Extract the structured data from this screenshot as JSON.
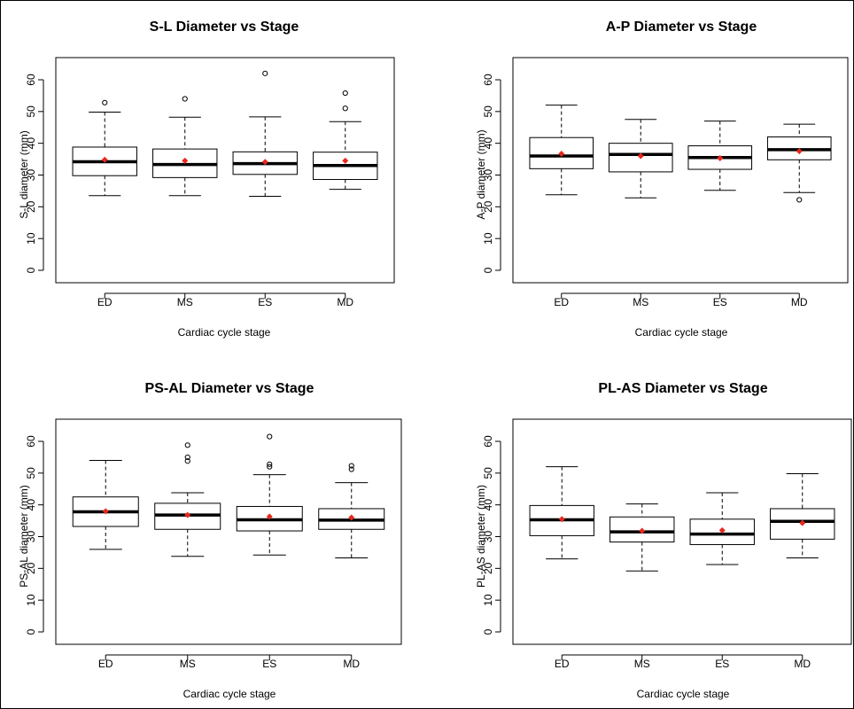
{
  "figure_colors": {
    "box": "#000000",
    "median": "#000000",
    "mean_marker": "#e8281e",
    "outlier": "#000000"
  },
  "chart_data": [
    {
      "type": "boxplot",
      "title": "S-L Diameter vs Stage",
      "xlabel": "Cardiac cycle stage",
      "ylabel": "S-L diameter (mm)",
      "ylim": [
        0,
        60
      ],
      "yticks": [
        "0",
        "10",
        "20",
        "30",
        "40",
        "50",
        "60"
      ],
      "categories": [
        "ED",
        "MS",
        "ES",
        "MD"
      ],
      "boxes": [
        {
          "category": "ED",
          "whisker_low": 23.5,
          "q1": 29.8,
          "median": 34.2,
          "q3": 38.8,
          "whisker_high": 49.8,
          "mean": 34.8,
          "outliers": [
            52.8
          ]
        },
        {
          "category": "MS",
          "whisker_low": 23.5,
          "q1": 29.2,
          "median": 33.3,
          "q3": 38.2,
          "whisker_high": 48.2,
          "mean": 34.5,
          "outliers": [
            54.0
          ]
        },
        {
          "category": "ES",
          "whisker_low": 23.3,
          "q1": 30.2,
          "median": 33.6,
          "q3": 37.3,
          "whisker_high": 48.3,
          "mean": 34.1,
          "outliers": [
            62.0
          ]
        },
        {
          "category": "MD",
          "whisker_low": 25.5,
          "q1": 28.6,
          "median": 33.0,
          "q3": 37.2,
          "whisker_high": 46.8,
          "mean": 34.5,
          "outliers": [
            51.0,
            55.8
          ]
        }
      ]
    },
    {
      "type": "boxplot",
      "title": "A-P Diameter vs Stage",
      "xlabel": "Cardiac cycle stage",
      "ylabel": "A-P diameter (mm)",
      "ylim": [
        0,
        60
      ],
      "yticks": [
        "0",
        "10",
        "20",
        "30",
        "40",
        "50",
        "60"
      ],
      "categories": [
        "ED",
        "MS",
        "ES",
        "MD"
      ],
      "boxes": [
        {
          "category": "ED",
          "whisker_low": 23.8,
          "q1": 32.0,
          "median": 36.0,
          "q3": 41.8,
          "whisker_high": 52.0,
          "mean": 36.7,
          "outliers": []
        },
        {
          "category": "MS",
          "whisker_low": 22.8,
          "q1": 31.0,
          "median": 36.5,
          "q3": 40.0,
          "whisker_high": 47.5,
          "mean": 36.0,
          "outliers": []
        },
        {
          "category": "ES",
          "whisker_low": 25.2,
          "q1": 31.8,
          "median": 35.5,
          "q3": 39.2,
          "whisker_high": 47.0,
          "mean": 35.3,
          "outliers": []
        },
        {
          "category": "MD",
          "whisker_low": 24.5,
          "q1": 34.8,
          "median": 38.0,
          "q3": 42.0,
          "whisker_high": 46.0,
          "mean": 37.5,
          "outliers": [
            22.2
          ]
        }
      ]
    },
    {
      "type": "boxplot",
      "title": "PS-AL Diameter vs Stage",
      "xlabel": "Cardiac cycle stage",
      "ylabel": "PS-AL diameter (mm)",
      "ylim": [
        0,
        60
      ],
      "yticks": [
        "0",
        "10",
        "20",
        "30",
        "40",
        "50",
        "60"
      ],
      "categories": [
        "ED",
        "MS",
        "ES",
        "MD"
      ],
      "boxes": [
        {
          "category": "ED",
          "whisker_low": 26.0,
          "q1": 33.2,
          "median": 37.8,
          "q3": 42.5,
          "whisker_high": 54.0,
          "mean": 38.0,
          "outliers": []
        },
        {
          "category": "MS",
          "whisker_low": 23.8,
          "q1": 32.3,
          "median": 36.8,
          "q3": 40.5,
          "whisker_high": 43.8,
          "mean": 36.8,
          "outliers": [
            53.8,
            55.0,
            58.8
          ]
        },
        {
          "category": "ES",
          "whisker_low": 24.2,
          "q1": 31.8,
          "median": 35.3,
          "q3": 39.5,
          "whisker_high": 49.5,
          "mean": 36.3,
          "outliers": [
            52.0,
            52.8,
            61.5
          ]
        },
        {
          "category": "MD",
          "whisker_low": 23.3,
          "q1": 32.3,
          "median": 35.2,
          "q3": 38.8,
          "whisker_high": 47.0,
          "mean": 36.0,
          "outliers": [
            51.2,
            52.3
          ]
        }
      ]
    },
    {
      "type": "boxplot",
      "title": "PL-AS Diameter vs Stage",
      "xlabel": "Cardiac cycle stage",
      "ylabel": "PL-AS diameter (mm)",
      "ylim": [
        0,
        60
      ],
      "yticks": [
        "0",
        "10",
        "20",
        "30",
        "40",
        "50",
        "60"
      ],
      "categories": [
        "ED",
        "MS",
        "ES",
        "MD"
      ],
      "boxes": [
        {
          "category": "ED",
          "whisker_low": 23.0,
          "q1": 30.3,
          "median": 35.3,
          "q3": 39.8,
          "whisker_high": 52.0,
          "mean": 35.5,
          "outliers": []
        },
        {
          "category": "MS",
          "whisker_low": 19.2,
          "q1": 28.3,
          "median": 31.5,
          "q3": 36.2,
          "whisker_high": 40.3,
          "mean": 31.8,
          "outliers": []
        },
        {
          "category": "ES",
          "whisker_low": 21.2,
          "q1": 27.5,
          "median": 30.8,
          "q3": 35.5,
          "whisker_high": 43.8,
          "mean": 32.0,
          "outliers": []
        },
        {
          "category": "MD",
          "whisker_low": 23.3,
          "q1": 29.2,
          "median": 34.8,
          "q3": 38.8,
          "whisker_high": 49.8,
          "mean": 34.3,
          "outliers": []
        }
      ]
    }
  ]
}
